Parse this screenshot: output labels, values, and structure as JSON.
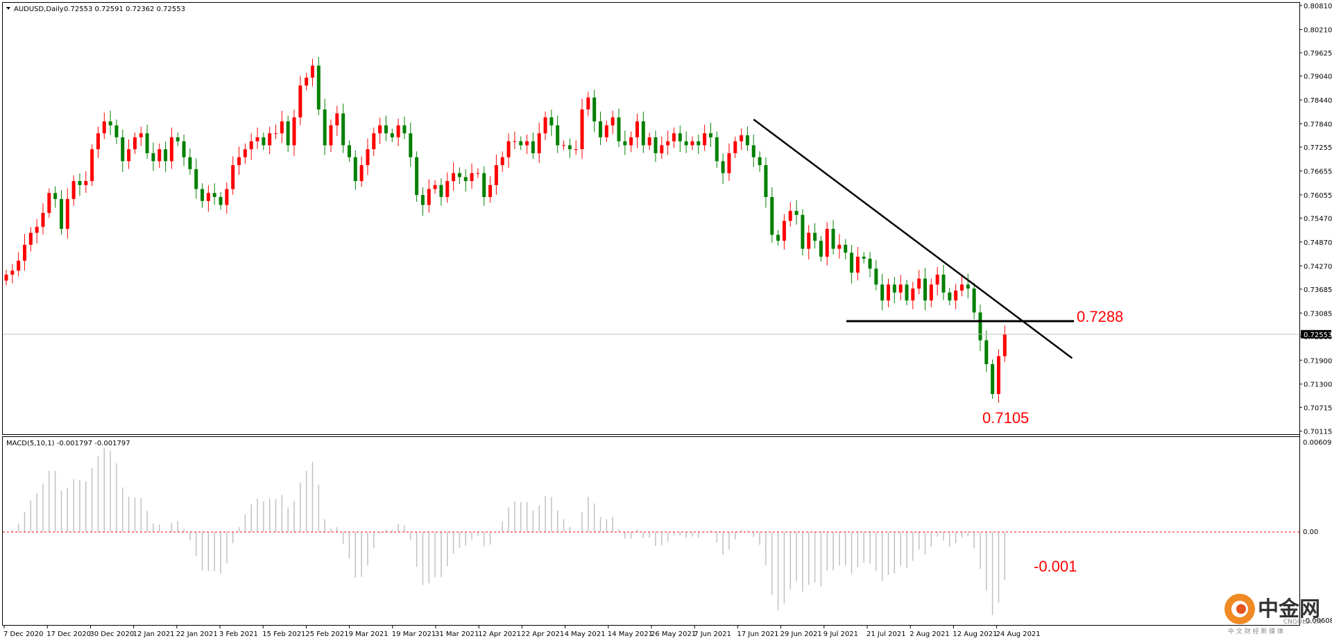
{
  "header": {
    "symbol_title": "AUDUSD,Daily",
    "ohlc": "0.72553 0.72591 0.72362 0.72553"
  },
  "macd_panel": {
    "title": "MACD(5,10,1) -0.001797 -0.001797",
    "axis_top": "0.006093",
    "axis_zero": "0.00",
    "axis_bottom": "-0.00608"
  },
  "annotations": {
    "resistance_label": "0.7288",
    "low_label": "0.7105",
    "macd_label": "-0.001"
  },
  "watermark": {
    "cn": "中金网",
    "en": "CNGOLD.CN",
    "tagline": "中 文 财 经 新 媒 体"
  },
  "colors": {
    "bull": "#ff0000",
    "bear": "#008000",
    "annotation": "#ff0000",
    "zero_line": "#ff0000",
    "hist": "#c0c0c0",
    "logo_orange": "#f08a24"
  },
  "chart_data": {
    "type": "candlestick",
    "symbol": "AUDUSD",
    "timeframe": "Daily",
    "last_price": "0.72553",
    "price_axis": {
      "ticks": [
        "0.80810",
        "0.80210",
        "0.79625",
        "0.79040",
        "0.78440",
        "0.77840",
        "0.77255",
        "0.76655",
        "0.76055",
        "0.75470",
        "0.74870",
        "0.74270",
        "0.73685",
        "0.73085",
        "0.72500",
        "0.71900",
        "0.71300",
        "0.70715",
        "0.70115"
      ],
      "range": [
        0.7011,
        0.8081
      ]
    },
    "date_labels": [
      "7 Dec 2020",
      "17 Dec 2020",
      "30 Dec 2020",
      "12 Jan 2021",
      "22 Jan 2021",
      "3 Feb 2021",
      "15 Feb 2021",
      "25 Feb 2021",
      "9 Mar 2021",
      "19 Mar 2021",
      "31 Mar 2021",
      "12 Apr 2021",
      "22 Apr 2021",
      "4 May 2021",
      "14 May 2021",
      "26 May 2021",
      "7 Jun 2021",
      "17 Jun 2021",
      "29 Jun 2021",
      "9 Jul 2021",
      "21 Jul 2021",
      "2 Aug 2021",
      "12 Aug 2021",
      "24 Aug 2021"
    ],
    "closes": [
      0.7405,
      0.7415,
      0.744,
      0.748,
      0.751,
      0.7525,
      0.756,
      0.761,
      0.7595,
      0.752,
      0.7595,
      0.764,
      0.763,
      0.764,
      0.772,
      0.776,
      0.779,
      0.778,
      0.775,
      0.769,
      0.772,
      0.775,
      0.776,
      0.771,
      0.769,
      0.772,
      0.769,
      0.775,
      0.774,
      0.77,
      0.767,
      0.762,
      0.759,
      0.761,
      0.76,
      0.758,
      0.762,
      0.768,
      0.77,
      0.772,
      0.774,
      0.775,
      0.773,
      0.776,
      0.776,
      0.779,
      0.773,
      0.78,
      0.788,
      0.79,
      0.793,
      0.782,
      0.773,
      0.778,
      0.781,
      0.773,
      0.77,
      0.764,
      0.768,
      0.772,
      0.776,
      0.778,
      0.776,
      0.775,
      0.778,
      0.776,
      0.77,
      0.7605,
      0.758,
      0.762,
      0.763,
      0.76,
      0.764,
      0.766,
      0.765,
      0.764,
      0.766,
      0.766,
      0.76,
      0.763,
      0.768,
      0.77,
      0.774,
      0.774,
      0.773,
      0.774,
      0.771,
      0.776,
      0.78,
      0.778,
      0.773,
      0.773,
      0.772,
      0.772,
      0.782,
      0.785,
      0.779,
      0.775,
      0.778,
      0.78,
      0.774,
      0.773,
      0.775,
      0.779,
      0.773,
      0.775,
      0.771,
      0.773,
      0.774,
      0.776,
      0.774,
      0.773,
      0.774,
      0.773,
      0.776,
      0.775,
      0.769,
      0.766,
      0.771,
      0.774,
      0.7755,
      0.773,
      0.77,
      0.768,
      0.76,
      0.7505,
      0.749,
      0.754,
      0.7565,
      0.7555,
      0.747,
      0.751,
      0.749,
      0.745,
      0.752,
      0.747,
      0.748,
      0.746,
      0.741,
      0.745,
      0.7445,
      0.742,
      0.738,
      0.734,
      0.738,
      0.736,
      0.738,
      0.734,
      0.737,
      0.7395,
      0.734,
      0.738,
      0.7405,
      0.736,
      0.734,
      0.7365,
      0.738,
      0.737,
      0.731,
      0.724,
      0.718,
      0.7105,
      0.72,
      0.7255
    ],
    "key_levels": {
      "resistance": 0.7288,
      "swing_low": 0.7105
    },
    "trendline": {
      "from": {
        "date": "7 Jun 2021",
        "price": 0.7795
      },
      "to": {
        "date": "27 Aug 2021",
        "price": 0.7195
      }
    },
    "macd": {
      "params": "5,10,1",
      "value": -0.001797,
      "signal": -0.001797,
      "range": [
        -0.00608,
        0.006093
      ]
    }
  }
}
